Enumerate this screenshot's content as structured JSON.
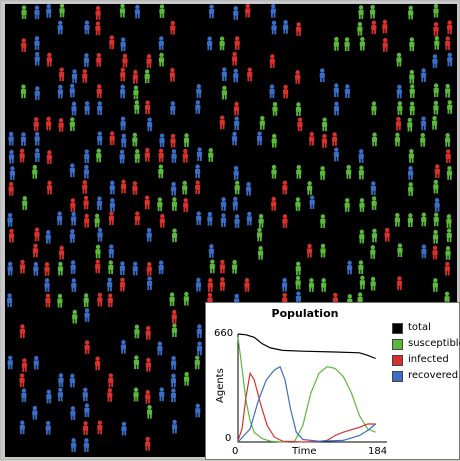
{
  "colors": {
    "background": "#000000",
    "susceptible": "#5cb83c",
    "infected": "#d7312c",
    "recovered": "#3a6ec6",
    "total": "#000000"
  },
  "plot": {
    "title": "Population",
    "chart_data": {
      "type": "line",
      "title": "Population",
      "xlabel": "Time",
      "ylabel": "Agents",
      "xlim": [
        0,
        184
      ],
      "ylim": [
        0,
        660
      ],
      "x_tick_labels": [
        "0",
        "184"
      ],
      "y_tick_labels": [
        "0",
        "660"
      ],
      "legend_position": "right",
      "series": [
        {
          "name": "total",
          "color": "#000000",
          "points": [
            [
              0,
              660
            ],
            [
              10,
              655
            ],
            [
              20,
              640
            ],
            [
              30,
              600
            ],
            [
              40,
              575
            ],
            [
              55,
              560
            ],
            [
              80,
              555
            ],
            [
              120,
              550
            ],
            [
              150,
              545
            ],
            [
              160,
              530
            ],
            [
              170,
              510
            ]
          ]
        },
        {
          "name": "susceptible",
          "color": "#5cb83c",
          "points": [
            [
              0,
              640
            ],
            [
              5,
              450
            ],
            [
              10,
              250
            ],
            [
              15,
              130
            ],
            [
              20,
              60
            ],
            [
              30,
              20
            ],
            [
              40,
              5
            ],
            [
              55,
              0
            ],
            [
              70,
              5
            ],
            [
              80,
              100
            ],
            [
              90,
              300
            ],
            [
              100,
              420
            ],
            [
              110,
              460
            ],
            [
              120,
              450
            ],
            [
              130,
              400
            ],
            [
              140,
              300
            ],
            [
              150,
              160
            ],
            [
              160,
              80
            ],
            [
              170,
              60
            ]
          ]
        },
        {
          "name": "infected",
          "color": "#d7312c",
          "points": [
            [
              0,
              10
            ],
            [
              5,
              80
            ],
            [
              10,
              280
            ],
            [
              15,
              420
            ],
            [
              20,
              380
            ],
            [
              28,
              230
            ],
            [
              36,
              100
            ],
            [
              45,
              30
            ],
            [
              55,
              5
            ],
            [
              80,
              0
            ],
            [
              100,
              3
            ],
            [
              110,
              10
            ],
            [
              120,
              40
            ],
            [
              130,
              60
            ],
            [
              140,
              75
            ],
            [
              150,
              90
            ],
            [
              160,
              110
            ],
            [
              170,
              110
            ]
          ]
        },
        {
          "name": "recovered",
          "color": "#3a6ec6",
          "points": [
            [
              0,
              0
            ],
            [
              15,
              80
            ],
            [
              25,
              250
            ],
            [
              35,
              380
            ],
            [
              45,
              440
            ],
            [
              52,
              460
            ],
            [
              58,
              380
            ],
            [
              65,
              200
            ],
            [
              72,
              60
            ],
            [
              80,
              15
            ],
            [
              100,
              5
            ],
            [
              130,
              10
            ],
            [
              150,
              40
            ],
            [
              160,
              70
            ],
            [
              170,
              110
            ]
          ]
        }
      ]
    }
  }
}
